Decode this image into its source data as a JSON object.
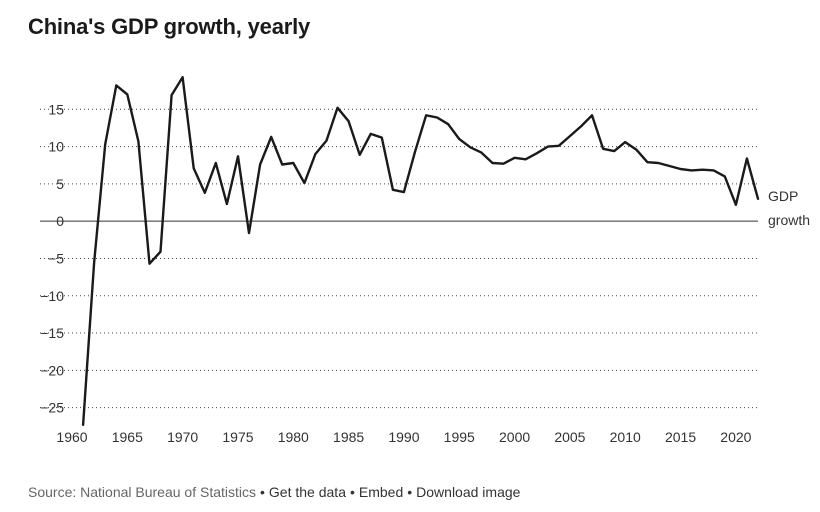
{
  "chart_data": {
    "type": "line",
    "title": "China's GDP growth, yearly",
    "xlabel": "",
    "ylabel": "",
    "xlim": [
      1960,
      2022
    ],
    "ylim": [
      -28,
      20
    ],
    "x_ticks": [
      "1960",
      "1965",
      "1970",
      "1975",
      "1980",
      "1985",
      "1990",
      "1995",
      "2000",
      "2005",
      "2010",
      "2015",
      "2020"
    ],
    "y_ticks": [
      "15",
      "10",
      "5",
      "0",
      "−5",
      "−10",
      "−15",
      "−20",
      "−25"
    ],
    "grid": "dotted horizontal",
    "series": [
      {
        "name": "GDP growth",
        "color": "#1a1a1a",
        "x": [
          1961,
          1962,
          1963,
          1964,
          1965,
          1966,
          1967,
          1968,
          1969,
          1970,
          1971,
          1972,
          1973,
          1974,
          1975,
          1976,
          1977,
          1978,
          1979,
          1980,
          1981,
          1982,
          1983,
          1984,
          1985,
          1986,
          1987,
          1988,
          1989,
          1990,
          1991,
          1992,
          1993,
          1994,
          1995,
          1996,
          1997,
          1998,
          1999,
          2000,
          2001,
          2002,
          2003,
          2004,
          2005,
          2006,
          2007,
          2008,
          2009,
          2010,
          2011,
          2012,
          2013,
          2014,
          2015,
          2016,
          2017,
          2018,
          2019,
          2020,
          2021,
          2022
        ],
        "values": [
          -27.3,
          -5.6,
          10.3,
          18.2,
          17.0,
          10.7,
          -5.7,
          -4.1,
          16.9,
          19.3,
          7.1,
          3.8,
          7.8,
          2.3,
          8.7,
          -1.6,
          7.6,
          11.3,
          7.6,
          7.8,
          5.1,
          9.0,
          10.8,
          15.2,
          13.4,
          8.9,
          11.7,
          11.2,
          4.2,
          3.9,
          9.3,
          14.2,
          13.9,
          13.0,
          11.0,
          9.9,
          9.2,
          7.8,
          7.7,
          8.5,
          8.3,
          9.1,
          10.0,
          10.1,
          11.4,
          12.7,
          14.2,
          9.7,
          9.4,
          10.6,
          9.6,
          7.9,
          7.8,
          7.4,
          7.0,
          6.8,
          6.9,
          6.8,
          6.0,
          2.2,
          8.4,
          3.0
        ]
      }
    ],
    "annotations": {
      "series_label_line1": "GDP",
      "series_label_line2": "growth"
    }
  },
  "footer": {
    "source": "Source: National Bureau of Statistics",
    "link_get_data": "Get the data",
    "link_embed": "Embed",
    "link_download": "Download image",
    "separator": "•"
  }
}
